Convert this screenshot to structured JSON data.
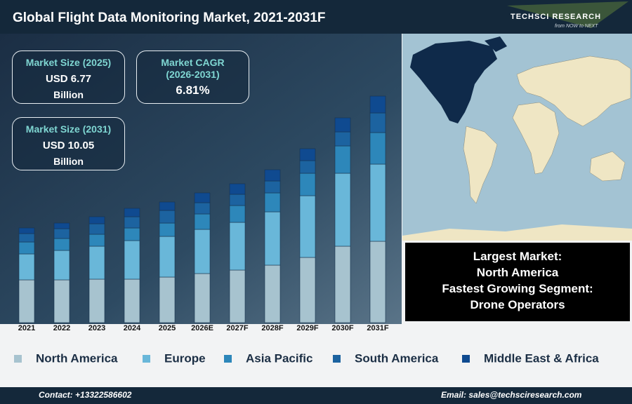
{
  "header": {
    "title": "Global Flight Data Monitoring Market, 2021-2031F"
  },
  "logo": {
    "name": "TECHSCI RESEARCH",
    "tagline": "from NOW to NEXT"
  },
  "stats": [
    {
      "label": "Market Size (2025)",
      "value": "USD 6.77",
      "unit": "Billion"
    },
    {
      "label": "Market CAGR (2026-2031)",
      "value": "6.81%"
    },
    {
      "label": "Market Size (2031)",
      "value": "USD 10.05",
      "unit": "Billion"
    }
  ],
  "highlights": [
    "Largest Market:",
    "North America",
    "Fastest Growing Segment:",
    "Drone Operators"
  ],
  "footer": {
    "contact": "Contact: +13322586602",
    "email": "Email: sales@techsciresearch.com"
  },
  "chart_data": {
    "type": "stacked-bar",
    "categories": [
      "2021",
      "2022",
      "2023",
      "2024",
      "2025",
      "2026E",
      "2027F",
      "2028F",
      "2029F",
      "2030F",
      "2031F"
    ],
    "ylim": [
      0,
      35
    ],
    "series": [
      {
        "name": "North America",
        "color": "#a7c3cf",
        "values": [
          6.1,
          6.1,
          6.2,
          6.2,
          6.5,
          7.0,
          7.5,
          8.2,
          9.3,
          10.9,
          11.6
        ]
      },
      {
        "name": "Europe",
        "color": "#69b7d9",
        "values": [
          3.7,
          4.2,
          4.7,
          5.5,
          5.8,
          6.3,
          6.8,
          7.6,
          8.8,
          10.4,
          11.0
        ]
      },
      {
        "name": "Asia Pacific",
        "color": "#2d87ba",
        "values": [
          1.7,
          1.7,
          1.7,
          1.8,
          1.9,
          2.2,
          2.4,
          2.7,
          3.2,
          3.9,
          4.5
        ]
      },
      {
        "name": "South America",
        "color": "#1c63a0",
        "values": [
          1.2,
          1.4,
          1.5,
          1.6,
          1.8,
          1.6,
          1.6,
          1.7,
          1.8,
          2.0,
          2.8
        ]
      },
      {
        "name": "Middle East & Africa",
        "color": "#0f4a90",
        "values": [
          0.8,
          0.8,
          1.0,
          1.2,
          1.2,
          1.4,
          1.5,
          1.6,
          1.7,
          2.0,
          2.4
        ]
      }
    ]
  }
}
